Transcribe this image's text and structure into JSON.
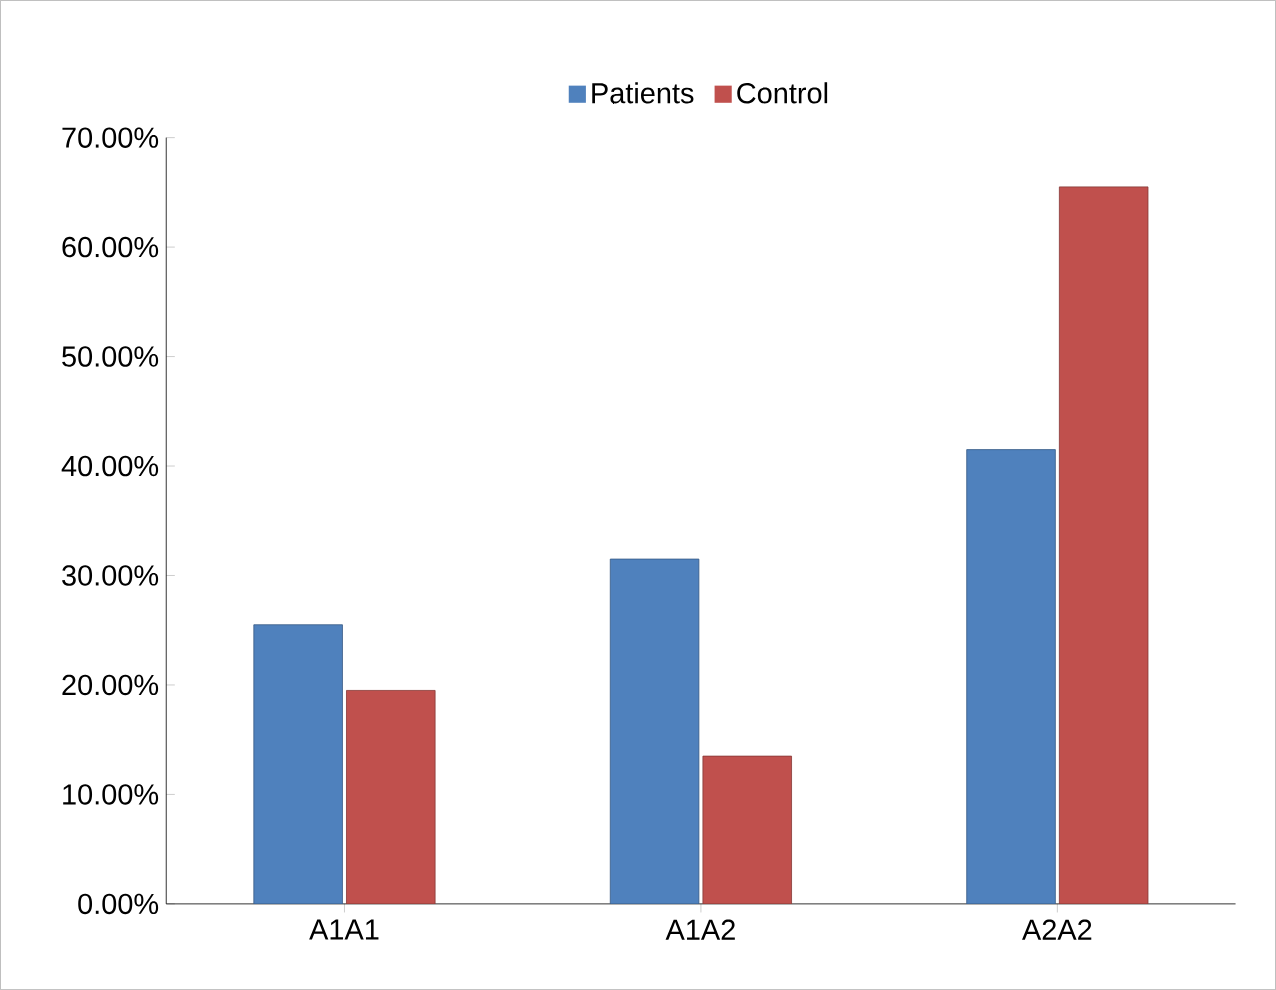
{
  "chart_data": {
    "type": "bar",
    "categories": [
      "A1A1",
      "A1A2",
      "A2A2"
    ],
    "series": [
      {
        "name": "Patients",
        "color": "#4f81bd",
        "values": [
          25.5,
          31.5,
          41.5
        ]
      },
      {
        "name": "Control",
        "color": "#c0504d",
        "values": [
          19.5,
          13.5,
          65.5
        ]
      }
    ],
    "ylim": [
      0,
      70
    ],
    "yticks": [
      {
        "value": 0,
        "label": "0.00%"
      },
      {
        "value": 10,
        "label": "10.00%"
      },
      {
        "value": 20,
        "label": "20.00%"
      },
      {
        "value": 30,
        "label": "30.00%"
      },
      {
        "value": 40,
        "label": "40.00%"
      },
      {
        "value": 50,
        "label": "50.00%"
      },
      {
        "value": 60,
        "label": "60.00%"
      },
      {
        "value": 70,
        "label": "70.00%"
      }
    ],
    "grid": false,
    "legend": "top"
  }
}
